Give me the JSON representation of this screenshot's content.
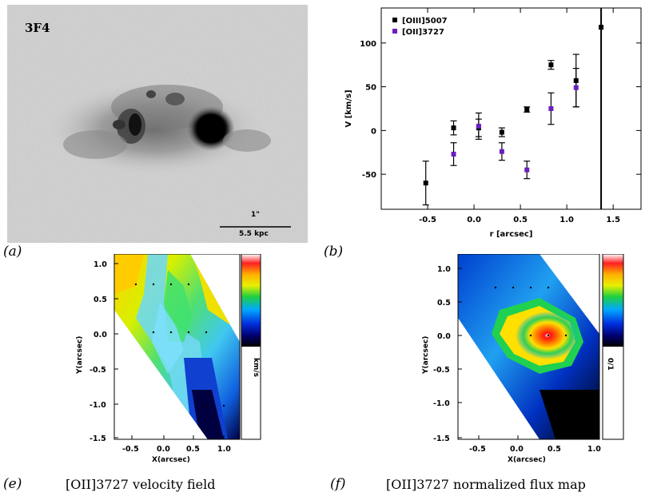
{
  "panel_a": {
    "object_label": "3F4",
    "scale_arcsec": "1\"",
    "scale_kpc": "5.5 kpc",
    "panel_label": "(a)"
  },
  "panel_b": {
    "panel_label": "(b)",
    "chart_data": {
      "type": "scatter",
      "xlabel": "r [arcsec]",
      "ylabel": "V [km/s]",
      "xlim": [
        -1.0,
        1.8
      ],
      "ylim": [
        -90,
        140
      ],
      "xticks": [
        "-0.5",
        "0.0",
        "0.5",
        "1.0",
        "1.5"
      ],
      "yticks": [
        "-50",
        "0",
        "50",
        "100"
      ],
      "legend_position": "top-left",
      "series": [
        {
          "name": "[OIII]5007",
          "color": "#000000",
          "points": [
            {
              "x": -0.52,
              "y": -60,
              "err": 25
            },
            {
              "x": -0.22,
              "y": 3,
              "err": 8
            },
            {
              "x": 0.05,
              "y": 3,
              "err": 10
            },
            {
              "x": 0.3,
              "y": -2,
              "err": 5
            },
            {
              "x": 0.57,
              "y": 24,
              "err": 3
            },
            {
              "x": 0.83,
              "y": 75,
              "err": 5
            },
            {
              "x": 1.1,
              "y": 57,
              "err": 30
            },
            {
              "x": 1.37,
              "y": 118,
              "err": 0
            }
          ]
        },
        {
          "name": "[OII]3727",
          "color": "#6a1fc0",
          "points": [
            {
              "x": -0.22,
              "y": -27,
              "err": 13
            },
            {
              "x": 0.05,
              "y": 5,
              "err": 15
            },
            {
              "x": 0.3,
              "y": -24,
              "err": 10
            },
            {
              "x": 0.57,
              "y": -45,
              "err": 10
            },
            {
              "x": 0.83,
              "y": 25,
              "err": 18
            },
            {
              "x": 1.1,
              "y": 49,
              "err": 22
            }
          ]
        }
      ],
      "vertical_line_x": 1.37
    }
  },
  "panel_e": {
    "panel_label": "(e)",
    "caption": "[OII]3727 velocity field",
    "xlabel": "X(arcsec)",
    "ylabel": "Y(arcsec)",
    "xticks": [
      "-0.5",
      "0.0",
      "0.5",
      "1.0"
    ],
    "yticks": [
      "1.0",
      "0.5",
      "0.0",
      "-0.5",
      "-1.0",
      "-1.5"
    ],
    "colorbar_label": "km/s"
  },
  "panel_f": {
    "panel_label": "(f)",
    "caption": "[OII]3727 normalized flux map",
    "xlabel": "X(arcsec)",
    "ylabel": "Y(arcsec)",
    "xticks": [
      "-0.5",
      "0.0",
      "0.5",
      "1.0"
    ],
    "yticks": [
      "1.0",
      "0.5",
      "0.0",
      "-0.5",
      "-1.0",
      "-1.5"
    ],
    "colorbar_label": "0/1"
  }
}
